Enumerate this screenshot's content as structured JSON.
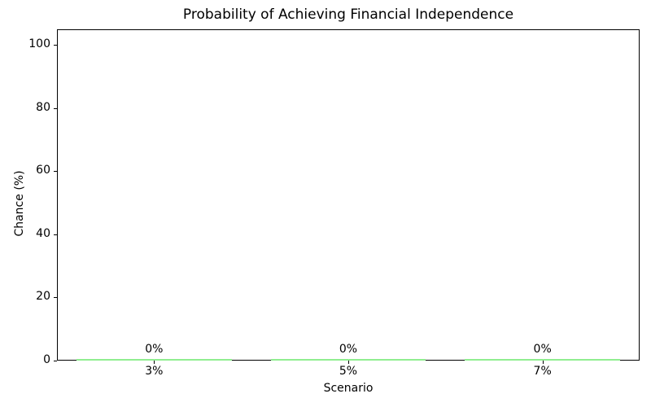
{
  "chart_data": {
    "type": "bar",
    "title": "Probability of Achieving Financial Independence",
    "xlabel": "Scenario",
    "ylabel": "Chance (%)",
    "categories": [
      "3%",
      "5%",
      "7%"
    ],
    "values": [
      0,
      0,
      0
    ],
    "bar_labels": [
      "0%",
      "0%",
      "0%"
    ],
    "yticks": [
      0,
      20,
      40,
      60,
      80,
      100
    ],
    "ylim": [
      0,
      105
    ],
    "bar_color": "#90ee90",
    "bar_width_frac": 0.8,
    "grid": false,
    "legend_position": "none",
    "background_color": "#ffffff",
    "text_color": "#000000",
    "spine_color": "#000000"
  }
}
